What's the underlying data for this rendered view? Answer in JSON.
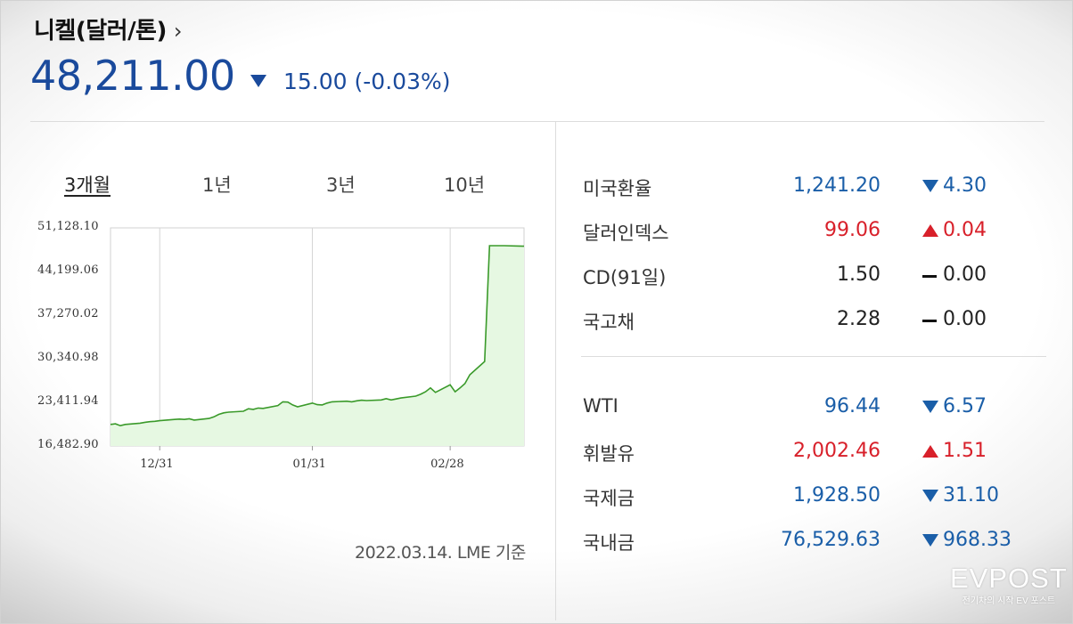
{
  "header": {
    "title": "니켈(달러/톤)",
    "chevron": "›",
    "price": "48,211.00",
    "change": "15.00",
    "change_pct": "(-0.03%)"
  },
  "tabs": [
    "3개월",
    "1년",
    "3년",
    "10년"
  ],
  "basis": "2022.03.14. LME 기준",
  "colors": {
    "blue": "#1a4a9c",
    "red": "#d8202a",
    "line_green": "#3a9a2a",
    "area_green": "#e6f8e2"
  },
  "rates": [
    {
      "name": "미국환율",
      "value": "1,241.20",
      "direction": "down",
      "change": "4.30"
    },
    {
      "name": "달러인덱스",
      "value": "99.06",
      "direction": "up",
      "change": "0.04"
    },
    {
      "name": "CD(91일)",
      "value": "1.50",
      "direction": "flat",
      "change": "0.00"
    },
    {
      "name": "국고채",
      "value": "2.28",
      "direction": "flat",
      "change": "0.00"
    }
  ],
  "commodities": [
    {
      "name": "WTI",
      "value": "96.44",
      "direction": "down",
      "change": "6.57"
    },
    {
      "name": "휘발유",
      "value": "2,002.46",
      "direction": "up",
      "change": "1.51"
    },
    {
      "name": "국제금",
      "value": "1,928.50",
      "direction": "down",
      "change": "31.10"
    },
    {
      "name": "국내금",
      "value": "76,529.63",
      "direction": "down",
      "change": "968.33"
    }
  ],
  "logo": {
    "name": "EVPOST",
    "tagline": "전기차의 시작 EV 포스트"
  },
  "chart_data": {
    "type": "area",
    "title": "",
    "xlabel": "",
    "ylabel": "",
    "y_ticks": [
      "51,128.10",
      "44,199.06",
      "37,270.02",
      "30,340.98",
      "23,411.94",
      "16,482.90"
    ],
    "x_ticks": [
      "12/31",
      "01/31",
      "02/28"
    ],
    "ylim": [
      16482.9,
      51128.1
    ],
    "grid": true,
    "x_range": [
      "2021-12-21",
      "2022-03-15"
    ],
    "series": [
      {
        "x": [
          "2021-12-21",
          "2021-12-22",
          "2021-12-23",
          "2021-12-24",
          "2021-12-27",
          "2021-12-28",
          "2021-12-29",
          "2021-12-30",
          "2021-12-31",
          "2022-01-03",
          "2022-01-04",
          "2022-01-05",
          "2022-01-06",
          "2022-01-07",
          "2022-01-10",
          "2022-01-11",
          "2022-01-12",
          "2022-01-13",
          "2022-01-14",
          "2022-01-17",
          "2022-01-18",
          "2022-01-19",
          "2022-01-20",
          "2022-01-21",
          "2022-01-24",
          "2022-01-25",
          "2022-01-26",
          "2022-01-27",
          "2022-01-28",
          "2022-01-31",
          "2022-02-01",
          "2022-02-02",
          "2022-02-03",
          "2022-02-04",
          "2022-02-07",
          "2022-02-08",
          "2022-02-09",
          "2022-02-10",
          "2022-02-11",
          "2022-02-14",
          "2022-02-15",
          "2022-02-16",
          "2022-02-17",
          "2022-02-18",
          "2022-02-21",
          "2022-02-22",
          "2022-02-23",
          "2022-02-24",
          "2022-02-25",
          "2022-02-28",
          "2022-03-01",
          "2022-03-02",
          "2022-03-03",
          "2022-03-04",
          "2022-03-07",
          "2022-03-08",
          "2022-03-11",
          "2022-03-14",
          "2022-03-15"
        ],
        "values": [
          19900,
          20000,
          19700,
          19900,
          20100,
          20250,
          20350,
          20400,
          20500,
          20700,
          20750,
          20700,
          20800,
          20600,
          20850,
          21100,
          21500,
          21750,
          21850,
          22000,
          22400,
          22300,
          22500,
          22450,
          22900,
          23500,
          23450,
          23000,
          22700,
          23300,
          23050,
          23000,
          23300,
          23500,
          23600,
          23500,
          23650,
          23750,
          23700,
          23800,
          24000,
          23800,
          23950,
          24100,
          24400,
          24700,
          25100,
          25700,
          25000,
          26200,
          25100,
          25700,
          26400,
          27800,
          29900,
          48300,
          48300,
          48250,
          48211
        ]
      }
    ]
  }
}
